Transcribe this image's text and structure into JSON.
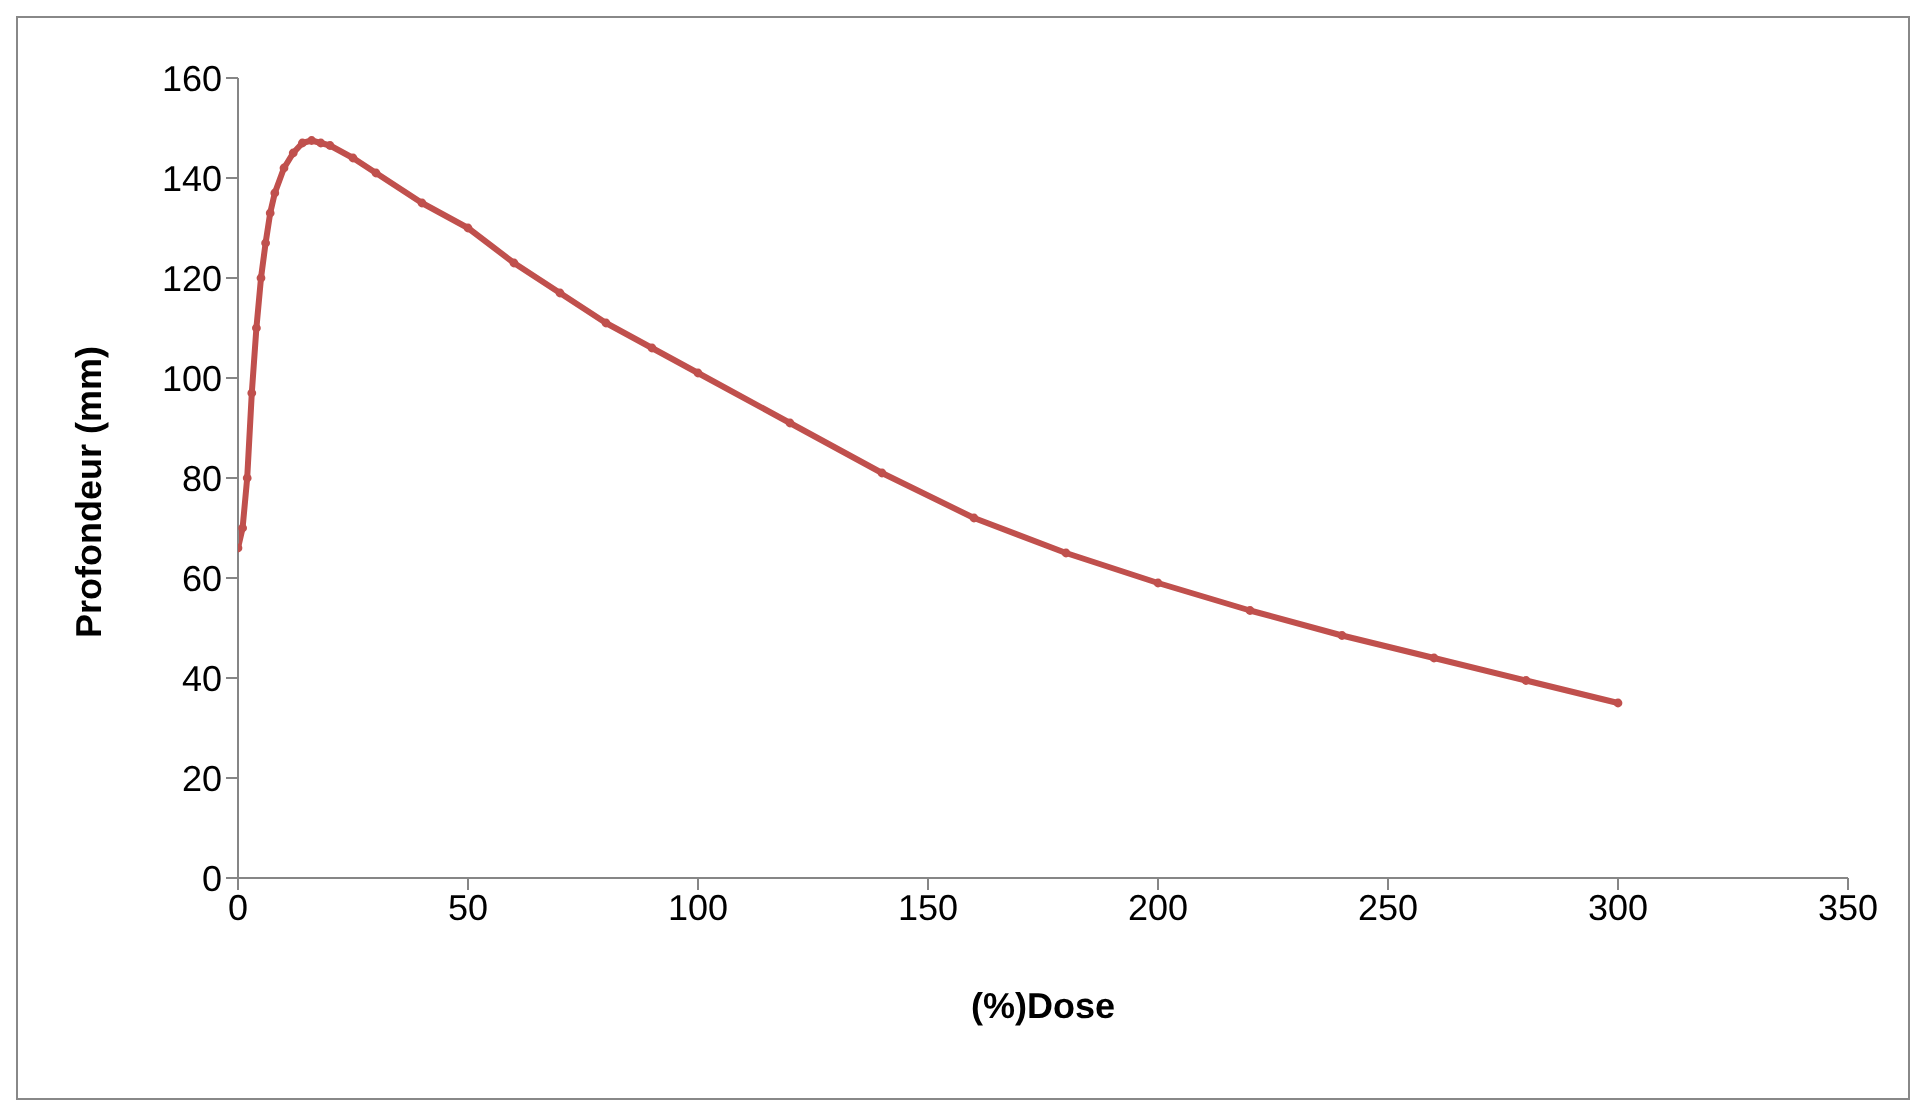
{
  "chart_data": {
    "type": "line",
    "xlabel": "(%)Dose",
    "ylabel": "Profondeur (mm)",
    "x": [
      0,
      1,
      2,
      3,
      4,
      5,
      6,
      7,
      8,
      10,
      12,
      14,
      16,
      18,
      20,
      25,
      30,
      40,
      50,
      60,
      70,
      80,
      90,
      100,
      120,
      140,
      160,
      180,
      200,
      220,
      240,
      260,
      280,
      300
    ],
    "series": [
      {
        "color": "#c0504d",
        "values": [
          66,
          70,
          80,
          97,
          110,
          120,
          127,
          133,
          137,
          142,
          145,
          147,
          147.5,
          147,
          146.5,
          144,
          141,
          135,
          130,
          123,
          117,
          111,
          106,
          101,
          91,
          81,
          72,
          65,
          59,
          53.5,
          48.5,
          44,
          39.5,
          35
        ]
      }
    ],
    "xlim": [
      0,
      350
    ],
    "xticks": [
      0,
      50,
      100,
      150,
      200,
      250,
      300,
      350
    ],
    "ylim": [
      0,
      160
    ],
    "yticks": [
      0,
      20,
      40,
      60,
      80,
      100,
      120,
      140,
      160
    ],
    "grid": false,
    "legend": false,
    "marker": "circle",
    "line_style": "solid"
  }
}
